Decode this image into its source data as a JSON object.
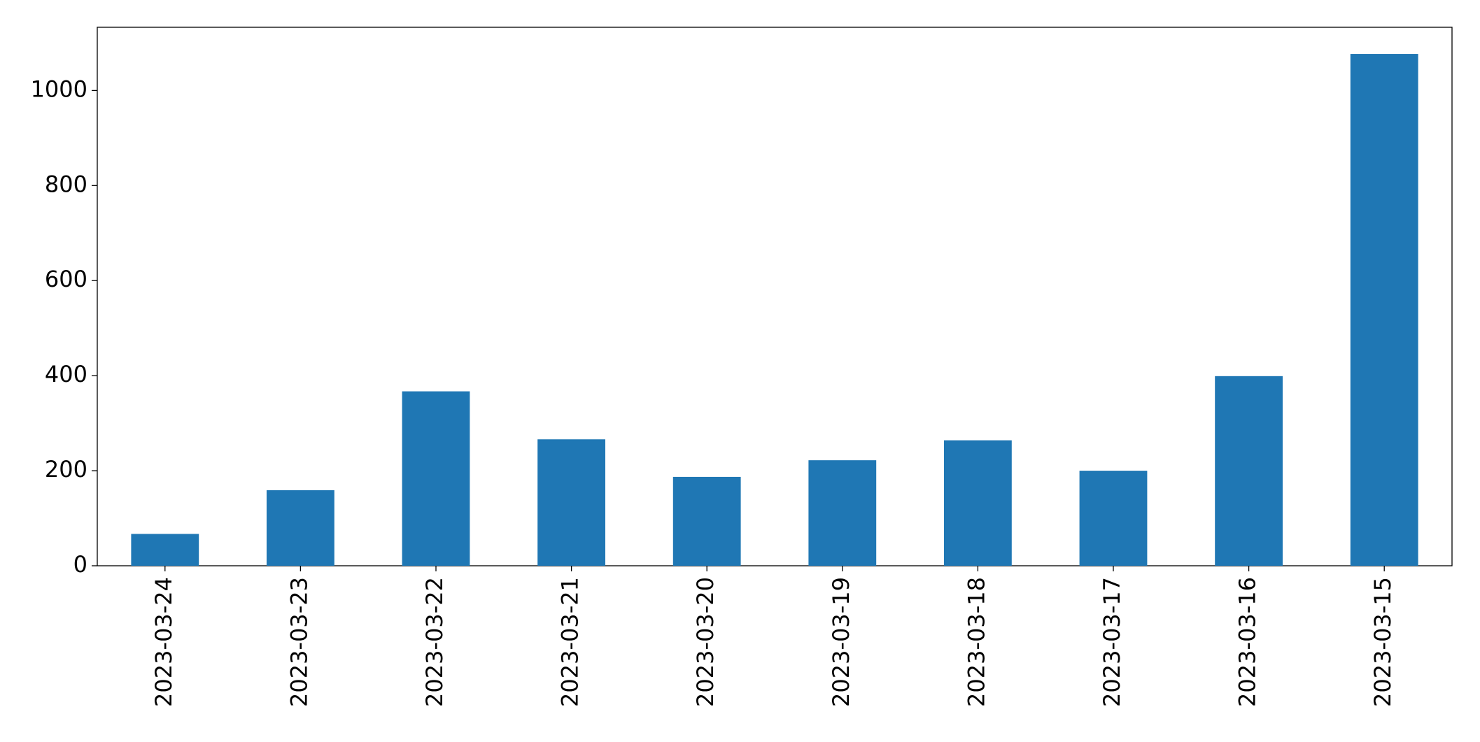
{
  "chart_data": {
    "type": "bar",
    "categories": [
      "2023-03-24",
      "2023-03-23",
      "2023-03-22",
      "2023-03-21",
      "2023-03-20",
      "2023-03-19",
      "2023-03-18",
      "2023-03-17",
      "2023-03-16",
      "2023-03-15"
    ],
    "values": [
      67,
      159,
      367,
      266,
      187,
      222,
      264,
      200,
      399,
      1077
    ],
    "color": "#1f77b4",
    "ylim": [
      0,
      1133
    ],
    "yticks": [
      0,
      200,
      400,
      600,
      800,
      1000
    ],
    "grid": false
  }
}
